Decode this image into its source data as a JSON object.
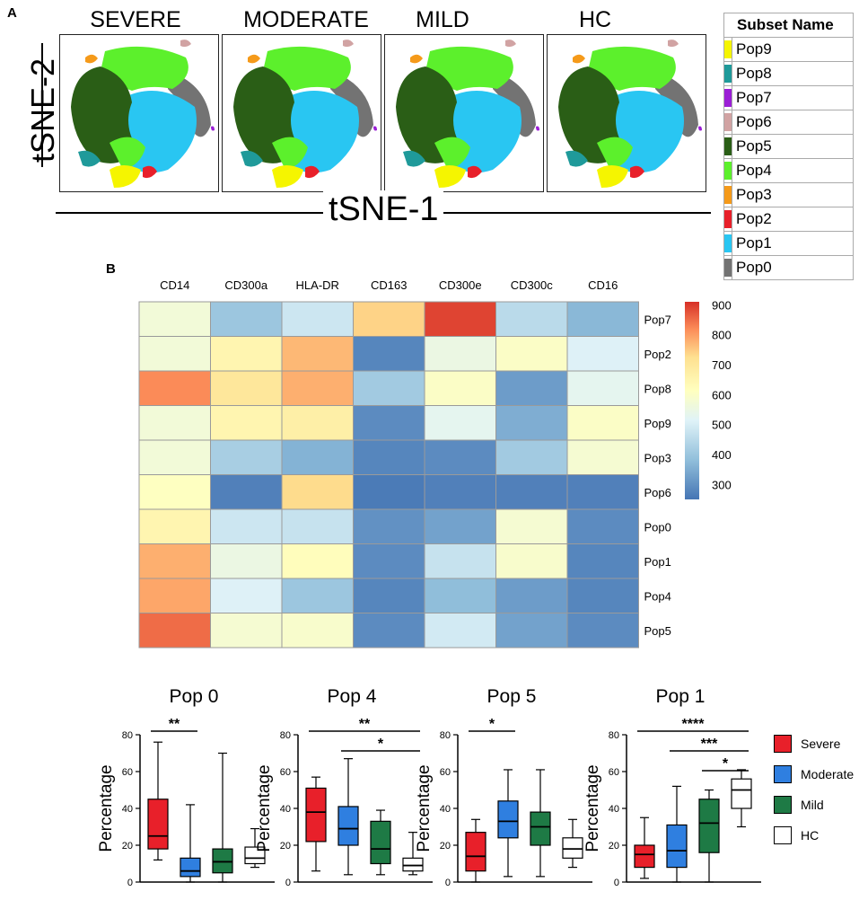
{
  "panelA": {
    "label": "A",
    "conditions": [
      "SEVERE",
      "MODERATE",
      "MILD",
      "HC"
    ],
    "xlabel": "tSNE-1",
    "ylabel": "tSNE-2",
    "legend_title": "Subset Name",
    "legend": [
      {
        "name": "Pop9",
        "color": "#f5f500"
      },
      {
        "name": "Pop8",
        "color": "#1f9a9a"
      },
      {
        "name": "Pop7",
        "color": "#9b1fd6"
      },
      {
        "name": "Pop6",
        "color": "#d1a3a3"
      },
      {
        "name": "Pop5",
        "color": "#2a5e16"
      },
      {
        "name": "Pop4",
        "color": "#5cf02c"
      },
      {
        "name": "Pop3",
        "color": "#f59a1a"
      },
      {
        "name": "Pop2",
        "color": "#e8202a"
      },
      {
        "name": "Pop1",
        "color": "#29c6f2"
      },
      {
        "name": "Pop0",
        "color": "#737373"
      }
    ]
  },
  "panelB": {
    "label": "B",
    "columns": [
      "CD14",
      "CD300a",
      "HLA-DR",
      "CD163",
      "CD300e",
      "CD300c",
      "CD16"
    ],
    "rows": [
      "Pop7",
      "Pop2",
      "Pop8",
      "Pop9",
      "Pop3",
      "Pop6",
      "Pop0",
      "Pop1",
      "Pop4",
      "Pop5"
    ],
    "values": [
      [
        570,
        400,
        480,
        740,
        890,
        450,
        370
      ],
      [
        570,
        650,
        770,
        280,
        550,
        600,
        510
      ],
      [
        820,
        700,
        780,
        410,
        600,
        320,
        530
      ],
      [
        570,
        650,
        670,
        290,
        530,
        350,
        600
      ],
      [
        570,
        420,
        360,
        280,
        290,
        410,
        580
      ],
      [
        610,
        270,
        730,
        260,
        270,
        270,
        270
      ],
      [
        650,
        480,
        470,
        300,
        330,
        580,
        290
      ],
      [
        780,
        550,
        620,
        290,
        470,
        590,
        280
      ],
      [
        790,
        510,
        400,
        280,
        380,
        320,
        280
      ],
      [
        850,
        580,
        590,
        290,
        490,
        330,
        290
      ]
    ],
    "colorbar_ticks": [
      "900",
      "800",
      "700",
      "600",
      "500",
      "400",
      "300"
    ],
    "vmin": 250,
    "vmax": 910
  },
  "chart_data": [
    {
      "type": "box",
      "title": "Pop 0",
      "ylabel": "Percentage",
      "ylim": [
        0,
        80
      ],
      "yticks": [
        "0",
        "20",
        "40",
        "60",
        "80"
      ],
      "groups": [
        "Severe",
        "Moderate",
        "Mild",
        "HC"
      ],
      "boxes": [
        {
          "min": 12,
          "q1": 18,
          "median": 25,
          "q3": 45,
          "max": 76
        },
        {
          "min": 0,
          "q1": 3,
          "median": 6,
          "q3": 13,
          "max": 42
        },
        {
          "min": 0,
          "q1": 5,
          "median": 11,
          "q3": 18,
          "max": 70
        },
        {
          "min": 8,
          "q1": 10,
          "median": 13,
          "q3": 19,
          "max": 29
        }
      ],
      "significance": [
        {
          "from": 0,
          "to": 1,
          "label": "**"
        }
      ]
    },
    {
      "type": "box",
      "title": "Pop 4",
      "ylabel": "Percentage",
      "ylim": [
        0,
        80
      ],
      "yticks": [
        "0",
        "20",
        "40",
        "60",
        "80"
      ],
      "groups": [
        "Severe",
        "Moderate",
        "Mild",
        "HC"
      ],
      "boxes": [
        {
          "min": 6,
          "q1": 22,
          "median": 38,
          "q3": 51,
          "max": 57
        },
        {
          "min": 4,
          "q1": 20,
          "median": 29,
          "q3": 41,
          "max": 67
        },
        {
          "min": 4,
          "q1": 10,
          "median": 18,
          "q3": 33,
          "max": 39
        },
        {
          "min": 4,
          "q1": 6,
          "median": 9,
          "q3": 13,
          "max": 27
        }
      ],
      "significance": [
        {
          "from": 0,
          "to": 3,
          "label": "**"
        },
        {
          "from": 1,
          "to": 3,
          "label": "*"
        }
      ]
    },
    {
      "type": "box",
      "title": "Pop 5",
      "ylabel": "Percentage",
      "ylim": [
        0,
        80
      ],
      "yticks": [
        "0",
        "20",
        "40",
        "60",
        "80"
      ],
      "groups": [
        "Severe",
        "Moderate",
        "Mild",
        "HC"
      ],
      "boxes": [
        {
          "min": 0,
          "q1": 6,
          "median": 14,
          "q3": 27,
          "max": 34
        },
        {
          "min": 3,
          "q1": 24,
          "median": 33,
          "q3": 44,
          "max": 61
        },
        {
          "min": 3,
          "q1": 20,
          "median": 30,
          "q3": 38,
          "max": 61
        },
        {
          "min": 8,
          "q1": 13,
          "median": 18,
          "q3": 24,
          "max": 34
        }
      ],
      "significance": [
        {
          "from": 0,
          "to": 1,
          "label": "*"
        }
      ]
    },
    {
      "type": "box",
      "title": "Pop 1",
      "ylabel": "Percentage",
      "ylim": [
        0,
        80
      ],
      "yticks": [
        "0",
        "20",
        "40",
        "60",
        "80"
      ],
      "groups": [
        "Severe",
        "Moderate",
        "Mild",
        "HC"
      ],
      "boxes": [
        {
          "min": 2,
          "q1": 8,
          "median": 15,
          "q3": 20,
          "max": 35
        },
        {
          "min": 0,
          "q1": 8,
          "median": 17,
          "q3": 31,
          "max": 52
        },
        {
          "min": 0,
          "q1": 16,
          "median": 32,
          "q3": 45,
          "max": 50
        },
        {
          "min": 30,
          "q1": 40,
          "median": 50,
          "q3": 56,
          "max": 61
        }
      ],
      "significance": [
        {
          "from": 0,
          "to": 3,
          "label": "****"
        },
        {
          "from": 1,
          "to": 3,
          "label": "***"
        },
        {
          "from": 2,
          "to": 3,
          "label": "*"
        }
      ]
    }
  ],
  "box_legend": [
    {
      "name": "Severe",
      "color": "#e8202a"
    },
    {
      "name": "Moderate",
      "color": "#2f7fe0"
    },
    {
      "name": "Mild",
      "color": "#1e7a45"
    },
    {
      "name": "HC",
      "color": "#ffffff"
    }
  ]
}
